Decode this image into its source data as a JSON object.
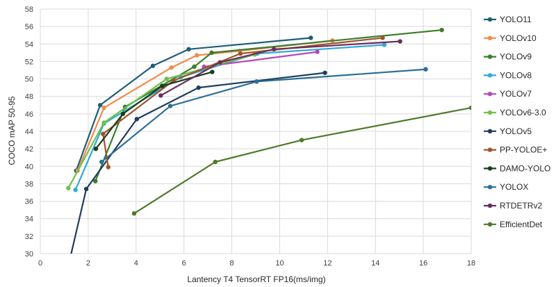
{
  "chart_data": {
    "type": "line",
    "xlabel": "Lantency T4 TensorRT FP16(ms/img)",
    "ylabel": "COCO mAP 50-95",
    "xlim": [
      0,
      18
    ],
    "ylim": [
      30,
      58
    ],
    "xticks": [
      0,
      2,
      4,
      6,
      8,
      10,
      12,
      14,
      16,
      18
    ],
    "yticks": [
      30,
      32,
      34,
      36,
      38,
      40,
      42,
      44,
      46,
      48,
      50,
      52,
      54,
      56,
      58
    ],
    "grid": "vertical and horizontal",
    "legend": "right",
    "series": [
      {
        "name": "YOLO11",
        "color": "#1f5c7a",
        "points": [
          [
            1.5,
            39.5
          ],
          [
            2.5,
            47.0
          ],
          [
            4.7,
            51.5
          ],
          [
            6.2,
            53.4
          ],
          [
            11.3,
            54.7
          ]
        ]
      },
      {
        "name": "YOLOv10",
        "color": "#f08c4a",
        "points": [
          [
            1.56,
            39.5
          ],
          [
            2.66,
            46.7
          ],
          [
            5.48,
            51.3
          ],
          [
            6.54,
            52.7
          ],
          [
            8.33,
            53.2
          ],
          [
            12.2,
            54.4
          ]
        ]
      },
      {
        "name": "YOLOv9",
        "color": "#3a7d2c",
        "points": [
          [
            2.3,
            38.3
          ],
          [
            3.54,
            46.8
          ],
          [
            6.43,
            51.4
          ],
          [
            7.16,
            53.0
          ],
          [
            16.77,
            55.6
          ]
        ]
      },
      {
        "name": "YOLOv8",
        "color": "#30a8d8",
        "points": [
          [
            1.47,
            37.3
          ],
          [
            2.66,
            44.9
          ],
          [
            5.86,
            50.2
          ],
          [
            9.06,
            52.9
          ],
          [
            14.37,
            53.9
          ]
        ]
      },
      {
        "name": "YOLOv7",
        "color": "#b548b5",
        "points": [
          [
            6.84,
            51.4
          ],
          [
            11.57,
            53.1
          ]
        ]
      },
      {
        "name": "YOLOv6-3.0",
        "color": "#6cc24a",
        "points": [
          [
            1.17,
            37.5
          ],
          [
            2.66,
            45.0
          ],
          [
            5.28,
            50.0
          ],
          [
            8.95,
            52.8
          ]
        ]
      },
      {
        "name": "YOLOv5",
        "color": "#1f3d5c",
        "points": [
          [
            1.12,
            28.0
          ],
          [
            1.92,
            37.4
          ],
          [
            4.03,
            45.4
          ],
          [
            6.61,
            49.0
          ],
          [
            11.89,
            50.7
          ]
        ]
      },
      {
        "name": "PP-YOLOE+",
        "color": "#a0522d",
        "points": [
          [
            2.84,
            39.9
          ],
          [
            2.62,
            43.7
          ],
          [
            5.56,
            49.8
          ],
          [
            8.36,
            52.9
          ],
          [
            14.3,
            54.7
          ]
        ]
      },
      {
        "name": "DAMO-YOLO",
        "color": "#1a3d1a",
        "points": [
          [
            2.32,
            42.0
          ],
          [
            3.45,
            46.0
          ],
          [
            5.09,
            49.2
          ],
          [
            7.18,
            50.8
          ]
        ]
      },
      {
        "name": "YOLOX",
        "color": "#2a6f97",
        "points": [
          [
            2.56,
            40.5
          ],
          [
            5.43,
            46.9
          ],
          [
            9.04,
            49.7
          ],
          [
            16.1,
            51.1
          ]
        ]
      },
      {
        "name": "RTDETRv2",
        "color": "#6b2d5c",
        "points": [
          [
            5.03,
            48.1
          ],
          [
            7.51,
            51.9
          ],
          [
            9.76,
            53.4
          ],
          [
            15.03,
            54.3
          ]
        ]
      },
      {
        "name": "EfficientDet",
        "color": "#4e7a2a",
        "points": [
          [
            3.92,
            34.6
          ],
          [
            7.31,
            40.5
          ],
          [
            10.92,
            43.0
          ],
          [
            18.0,
            46.7
          ]
        ]
      }
    ]
  }
}
